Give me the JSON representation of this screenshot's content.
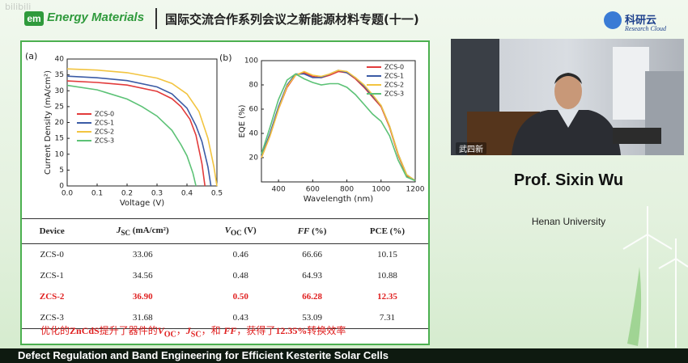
{
  "header": {
    "logo": "em",
    "brand": "Energy Materials",
    "title": "国际交流合作系列会议之新能源材料专题(十一)",
    "partner": "科研云",
    "partner_sub": "Research Cloud",
    "watermark": "bilibili"
  },
  "chart_data": [
    {
      "type": "line",
      "panel": "(a)",
      "xlabel": "Voltage (V)",
      "ylabel": "Current Density (mA/cm²)",
      "xlim": [
        0,
        0.5
      ],
      "xticks": [
        {
          "value": 0,
          "label": "0.0"
        },
        0.1,
        0.2,
        0.3,
        0.4,
        0.5
      ],
      "ylim": [
        0,
        40
      ],
      "yticks": [
        0,
        5,
        10,
        15,
        20,
        25,
        30,
        35,
        40
      ],
      "legend": "center-left",
      "series": [
        {
          "name": "ZCS-0",
          "color": "#e23b3b",
          "x": [
            0,
            0.1,
            0.2,
            0.3,
            0.35,
            0.38,
            0.41,
            0.43,
            0.45,
            0.46
          ],
          "values": [
            33.1,
            32.6,
            31.8,
            29.8,
            27.5,
            25,
            21,
            16,
            7,
            0
          ]
        },
        {
          "name": "ZCS-1",
          "color": "#3b5ba5",
          "x": [
            0,
            0.1,
            0.2,
            0.3,
            0.35,
            0.4,
            0.43,
            0.45,
            0.47,
            0.48
          ],
          "values": [
            34.6,
            34.1,
            33.2,
            31.2,
            29,
            24.5,
            19,
            14,
            6,
            0
          ]
        },
        {
          "name": "ZCS-2",
          "color": "#f2c440",
          "x": [
            0,
            0.1,
            0.2,
            0.3,
            0.35,
            0.4,
            0.44,
            0.47,
            0.49,
            0.5
          ],
          "values": [
            36.9,
            36.5,
            35.7,
            34,
            32.3,
            29,
            23.5,
            15,
            6,
            0
          ]
        },
        {
          "name": "ZCS-3",
          "color": "#5cc276",
          "x": [
            0,
            0.1,
            0.2,
            0.25,
            0.3,
            0.35,
            0.38,
            0.4,
            0.42,
            0.43
          ],
          "values": [
            31.7,
            30.3,
            27.4,
            25,
            22,
            17.5,
            13,
            9.5,
            4,
            0
          ]
        }
      ]
    },
    {
      "type": "line",
      "panel": "(b)",
      "xlabel": "Wavelength (nm)",
      "ylabel": "EQE (%)",
      "xlim": [
        300,
        1200
      ],
      "xticks": [
        400,
        600,
        800,
        1000,
        1200
      ],
      "ylim": [
        0,
        100
      ],
      "yticks": [
        20,
        40,
        60,
        80,
        100
      ],
      "legend": "upper-right",
      "series": [
        {
          "name": "ZCS-0",
          "color": "#e23b3b",
          "x": [
            300,
            350,
            400,
            450,
            500,
            550,
            600,
            650,
            700,
            750,
            800,
            850,
            900,
            950,
            1000,
            1050,
            1100,
            1150,
            1200
          ],
          "values": [
            20,
            38,
            60,
            78,
            88,
            90,
            87,
            86,
            88,
            91,
            90,
            85,
            78,
            70,
            62,
            45,
            22,
            5,
            1
          ]
        },
        {
          "name": "ZCS-1",
          "color": "#3b5ba5",
          "x": [
            300,
            350,
            400,
            450,
            500,
            550,
            600,
            650,
            700,
            750,
            800,
            850,
            900,
            950,
            1000,
            1050,
            1100,
            1150,
            1200
          ],
          "values": [
            21,
            40,
            62,
            80,
            89,
            89,
            86,
            86,
            89,
            92,
            90,
            86,
            79,
            71,
            63,
            46,
            23,
            6,
            1
          ]
        },
        {
          "name": "ZCS-2",
          "color": "#f2c440",
          "x": [
            300,
            350,
            400,
            450,
            500,
            550,
            600,
            650,
            700,
            750,
            800,
            850,
            900,
            950,
            1000,
            1050,
            1100,
            1150,
            1200
          ],
          "values": [
            20,
            38,
            60,
            79,
            88,
            91,
            88,
            87,
            89,
            92,
            91,
            86,
            80,
            72,
            63,
            46,
            23,
            6,
            1
          ]
        },
        {
          "name": "ZCS-3",
          "color": "#5cc276",
          "x": [
            300,
            350,
            400,
            450,
            500,
            550,
            600,
            650,
            700,
            750,
            800,
            850,
            900,
            950,
            1000,
            1050,
            1100,
            1150,
            1200
          ],
          "values": [
            23,
            45,
            68,
            84,
            89,
            85,
            82,
            80,
            81,
            81,
            78,
            72,
            64,
            56,
            50,
            38,
            18,
            4,
            1
          ]
        }
      ]
    }
  ],
  "table": {
    "header": [
      {
        "main": "Device"
      },
      {
        "main": "J",
        "sub": "SC",
        "rest": " (mA/cm²)"
      },
      {
        "main": "V",
        "sub": "OC",
        "rest": " (V)"
      },
      {
        "main": "FF",
        "rest": " (%)"
      },
      {
        "main": "PCE",
        "rest": " (%)"
      }
    ],
    "rows": [
      [
        "ZCS-0",
        "33.06",
        "0.46",
        "66.66",
        "10.15"
      ],
      [
        "ZCS-1",
        "34.56",
        "0.48",
        "64.93",
        "10.88"
      ],
      [
        "ZCS-2",
        "36.90",
        "0.50",
        "66.28",
        "12.35"
      ],
      [
        "ZCS-3",
        "31.68",
        "0.43",
        "53.09",
        "7.31"
      ]
    ]
  },
  "caption": [
    "优化的",
    "ZnCdS",
    "提升了器件的",
    "V",
    "OC",
    "，",
    "J",
    "SC",
    "，和 ",
    "FF",
    "，获得了",
    "12.35%",
    "转换效率"
  ],
  "speaker": {
    "tag": "武四新",
    "name": "Prof. Sixin Wu",
    "affiliation": "Henan University"
  },
  "footer": "Defect Regulation and Band Engineering for Efficient Kesterite Solar Cells"
}
